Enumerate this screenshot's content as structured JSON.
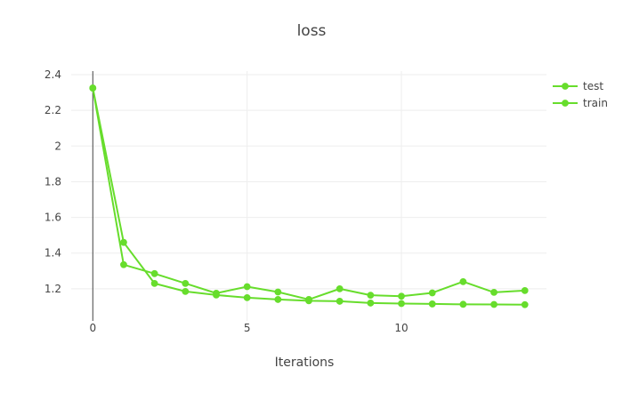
{
  "chart_data": {
    "type": "line",
    "title": "loss",
    "xlabel": "Iterations",
    "ylabel": "",
    "xlim": [
      -0.7,
      14.7
    ],
    "ylim": [
      1.02,
      2.42
    ],
    "x_ticks": [
      0,
      5,
      10
    ],
    "y_ticks": [
      1.2,
      1.4,
      1.6,
      1.8,
      2,
      2.2,
      2.4
    ],
    "x_tick_labels": [
      "0",
      "5",
      "10"
    ],
    "y_tick_labels": [
      "1.2",
      "1.4",
      "1.6",
      "1.8",
      "2",
      "2.2",
      "2.4"
    ],
    "grid": true,
    "legend_position": "top-right",
    "series": [
      {
        "name": "test",
        "color": "#67dd2c",
        "x": [
          0,
          1,
          2,
          3,
          4,
          5,
          6,
          7,
          8,
          9,
          10,
          11,
          12,
          13,
          14
        ],
        "values": [
          2.325,
          1.46,
          1.23,
          1.185,
          1.165,
          1.15,
          1.14,
          1.133,
          1.13,
          1.12,
          1.117,
          1.115,
          1.113,
          1.112,
          1.111
        ]
      },
      {
        "name": "train",
        "color": "#67dd2c",
        "x": [
          0,
          1,
          2,
          3,
          4,
          5,
          6,
          7,
          8,
          9,
          10,
          11,
          12,
          13,
          14
        ],
        "values": [
          2.325,
          1.335,
          1.285,
          1.23,
          1.175,
          1.212,
          1.182,
          1.14,
          1.2,
          1.164,
          1.158,
          1.177,
          1.24,
          1.18,
          1.19
        ]
      }
    ]
  }
}
